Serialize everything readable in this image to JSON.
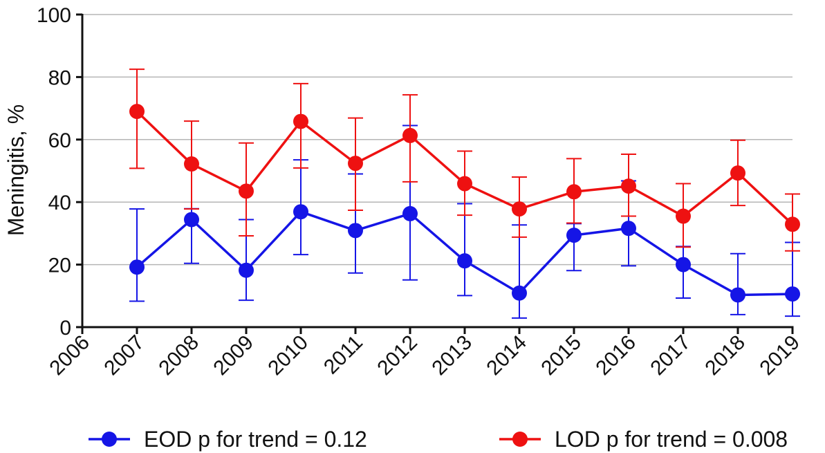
{
  "chart_data": {
    "type": "line",
    "x": [
      2007,
      2008,
      2009,
      2010,
      2011,
      2012,
      2013,
      2014,
      2015,
      2016,
      2017,
      2018,
      2019
    ],
    "x_ticks": [
      "2006",
      "2007",
      "2008",
      "2009",
      "2010",
      "2011",
      "2012",
      "2013",
      "2014",
      "2015",
      "2016",
      "2017",
      "2018",
      "2019"
    ],
    "xlim": [
      2006,
      2019
    ],
    "ylim": [
      0,
      100
    ],
    "y_ticks": [
      "0",
      "20",
      "40",
      "60",
      "80",
      "100"
    ],
    "ylabel": "Meningitis, %",
    "xlabel": "",
    "grid": "horizontal",
    "legend_position": "bottom",
    "series": [
      {
        "name": "EOD",
        "label": "EOD p for trend = 0.12",
        "color": "#1515e6",
        "values": [
          19.2,
          34.4,
          18.2,
          36.9,
          30.9,
          36.3,
          21.2,
          10.9,
          29.4,
          31.6,
          20.0,
          10.3,
          10.6
        ],
        "err_low": [
          8.3,
          20.4,
          8.6,
          23.2,
          17.3,
          15.1,
          10.1,
          2.9,
          18.1,
          19.6,
          9.3,
          4.0,
          3.5
        ],
        "err_high": [
          37.8,
          37.9,
          34.4,
          53.5,
          49.0,
          64.5,
          39.5,
          32.7,
          33.1,
          46.8,
          25.8,
          23.5,
          27.1
        ]
      },
      {
        "name": "LOD",
        "label": "LOD p for trend = 0.008",
        "color": "#ee1111",
        "values": [
          69.0,
          52.2,
          43.5,
          65.8,
          52.4,
          61.3,
          45.9,
          37.8,
          43.3,
          45.1,
          35.5,
          49.3,
          32.9
        ],
        "err_low": [
          50.8,
          37.8,
          29.2,
          50.9,
          37.4,
          46.5,
          35.8,
          28.8,
          33.3,
          35.5,
          25.6,
          38.9,
          24.4
        ],
        "err_high": [
          82.5,
          65.9,
          58.9,
          77.9,
          66.9,
          74.3,
          56.3,
          48.0,
          53.9,
          55.3,
          45.9,
          59.8,
          42.6
        ]
      }
    ]
  }
}
